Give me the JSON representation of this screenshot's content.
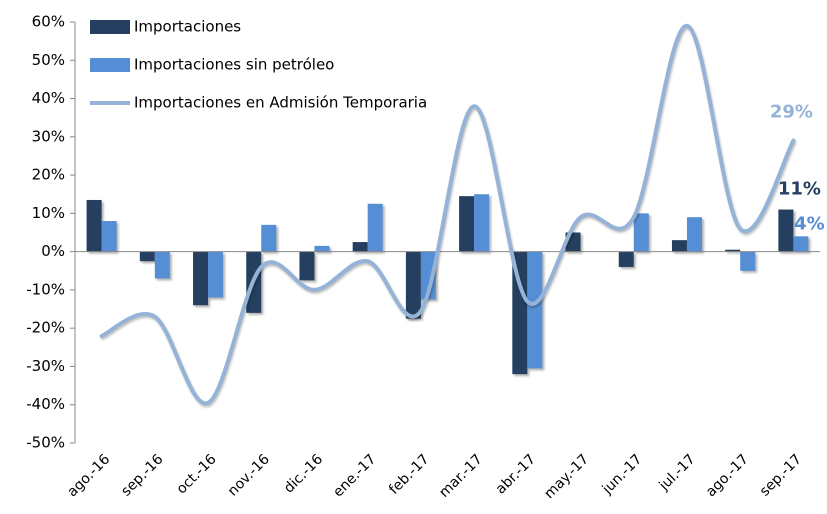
{
  "chart_data": {
    "type": "bar-line",
    "categories": [
      "ago.-16",
      "sep.-16",
      "oct.-16",
      "nov.-16",
      "dic.-16",
      "ene.-17",
      "feb.-17",
      "mar.-17",
      "abr.-17",
      "may.-17",
      "jun.-17",
      "jul.-17",
      "ago.-17",
      "sep.-17"
    ],
    "series": [
      {
        "name": "Importaciones",
        "type": "bar",
        "color": "#243f60",
        "values": [
          13.5,
          -2.5,
          -14,
          -16,
          -7.5,
          2.5,
          -17.5,
          14.5,
          -32,
          5,
          -4,
          3,
          0.5,
          11
        ],
        "value_labels": [
          null,
          null,
          null,
          null,
          null,
          null,
          null,
          null,
          null,
          null,
          null,
          null,
          null,
          "11%"
        ]
      },
      {
        "name": "Importaciones sin petróleo",
        "type": "bar",
        "color": "#558ed5",
        "values": [
          8,
          -7,
          -12,
          7,
          1.5,
          12.5,
          -12.5,
          15,
          -30.5,
          0,
          10,
          9,
          -5,
          4
        ],
        "value_labels": [
          null,
          null,
          null,
          null,
          null,
          null,
          null,
          null,
          null,
          null,
          null,
          null,
          null,
          "4%"
        ]
      },
      {
        "name": "Importaciones en Admisión Temporaria",
        "type": "line",
        "color": "#95b3d7",
        "values": [
          -22,
          -17,
          -39.5,
          -4,
          -10,
          -2.5,
          -15.5,
          38,
          -13,
          9,
          9,
          59,
          6,
          29
        ],
        "value_labels": [
          null,
          null,
          null,
          null,
          null,
          null,
          null,
          null,
          null,
          null,
          null,
          null,
          null,
          "29%"
        ]
      }
    ],
    "ylim": [
      -50,
      60
    ],
    "yticks": [
      {
        "value": -50,
        "label": "-50%"
      },
      {
        "value": -40,
        "label": "-40%"
      },
      {
        "value": -30,
        "label": "-30%"
      },
      {
        "value": -20,
        "label": "-20%"
      },
      {
        "value": -10,
        "label": "-10%"
      },
      {
        "value": 0,
        "label": "0%"
      },
      {
        "value": 10,
        "label": "10%"
      },
      {
        "value": 20,
        "label": "20%"
      },
      {
        "value": 30,
        "label": "30%"
      },
      {
        "value": 40,
        "label": "40%"
      },
      {
        "value": 50,
        "label": "50%"
      },
      {
        "value": 60,
        "label": "60%"
      }
    ],
    "legend": "top-left",
    "grid": false
  }
}
